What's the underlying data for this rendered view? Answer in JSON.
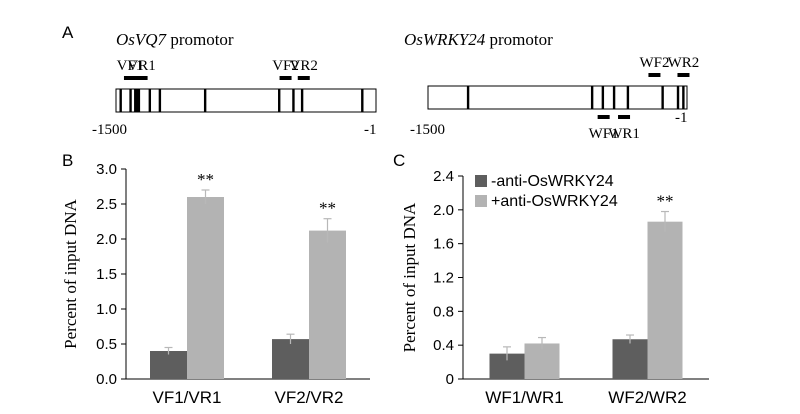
{
  "panel_a": {
    "letter": "A",
    "left": {
      "gene": "OsVQ7",
      "suffix": " promotor",
      "primers": [
        {
          "label": "VF1",
          "pos": -1431
        },
        {
          "label": "VR1",
          "pos": -1364
        },
        {
          "label": "VF2",
          "pos": -534
        },
        {
          "label": "VR2",
          "pos": -429
        }
      ],
      "tick_start": "-1500",
      "tick_end": "-1",
      "sites": [
        -1473,
        -1416,
        -1389,
        -1378,
        -1368,
        -1305,
        -1247,
        -986,
        -559,
        -477,
        -427,
        -80
      ]
    },
    "right": {
      "gene": "OsWRKY24",
      "suffix": " promotor",
      "primers": [
        {
          "label": "WF2",
          "pos": -201,
          "side": "top"
        },
        {
          "label": "WR2",
          "pos": -33,
          "side": "top"
        },
        {
          "label": "WF1",
          "pos": -495,
          "side": "bottom"
        },
        {
          "label": "WR1",
          "pos": -377,
          "side": "bottom"
        }
      ],
      "tick_start": "-1500",
      "tick_end": "-1",
      "sites": [
        -1268,
        -550,
        -488,
        -423,
        -343,
        -142,
        -53,
        -22
      ]
    }
  },
  "chart_data": [
    {
      "type": "bar",
      "letter": "B",
      "ylabel": "Percent of input DNA",
      "ylim": [
        0,
        3.0
      ],
      "yticks": [
        "0.0",
        "0.5",
        "1.0",
        "1.5",
        "2.0",
        "2.5",
        "3.0"
      ],
      "categories": [
        "VF1/VR1",
        "VF2/VR2"
      ],
      "series": [
        {
          "values": [
            0.4,
            0.57
          ],
          "errors": [
            0.05,
            0.07
          ],
          "color": "#5e5e5e"
        },
        {
          "values": [
            2.6,
            2.12
          ],
          "errors": [
            0.1,
            0.17
          ],
          "color": "#b3b3b3"
        }
      ],
      "annotations": [
        "**",
        "**"
      ]
    },
    {
      "type": "bar",
      "letter": "C",
      "ylabel": "Percent of input DNA",
      "ylim": [
        0,
        2.4
      ],
      "yticks": [
        "0",
        "0.4",
        "0.8",
        "1.2",
        "1.6",
        "2.0",
        "2.4"
      ],
      "categories": [
        "WF1/WR1",
        "WF2/WR2"
      ],
      "series": [
        {
          "name": "-anti-OsWRKY24",
          "values": [
            0.3,
            0.47
          ],
          "errors": [
            0.08,
            0.05
          ],
          "color": "#5e5e5e"
        },
        {
          "name": "+anti-OsWRKY24",
          "values": [
            0.42,
            1.86
          ],
          "errors": [
            0.07,
            0.12
          ],
          "color": "#b3b3b3"
        }
      ],
      "annotations": [
        "",
        "**"
      ],
      "legend": "top-left"
    }
  ]
}
